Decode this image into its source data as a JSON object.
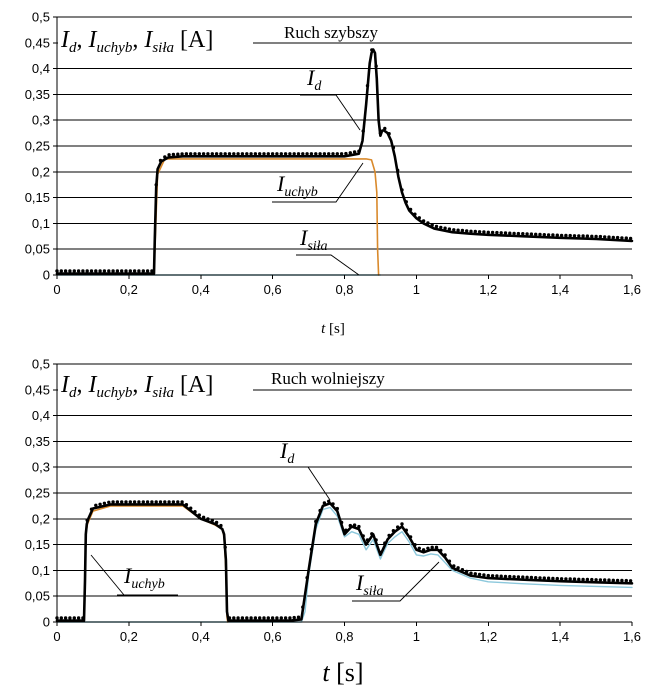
{
  "colors": {
    "id_series": "#000000",
    "uchyb_series": "#d9892b",
    "sila_series": "#8cc8dc"
  },
  "chart_data": [
    {
      "type": "line",
      "title": "Ruch szybszy",
      "xlabel_var": "t",
      "xlabel_unit": "[s]",
      "ylabel_unit": "[A]",
      "label_id": "d",
      "label_uchyb": "uchyb",
      "label_sila": "siła",
      "xlim": [
        0,
        1.6
      ],
      "ylim": [
        0,
        0.5
      ],
      "xticks": [
        "0",
        "0,2",
        "0,4",
        "0,6",
        "0,8",
        "1",
        "1,2",
        "1,4",
        "1,6"
      ],
      "yticks": [
        "0",
        "0,05",
        "0,1",
        "0,15",
        "0,2",
        "0,25",
        "0,3",
        "0,35",
        "0,4",
        "0,45",
        "0,5"
      ],
      "grid": true,
      "series": [
        {
          "key": "I_d",
          "x": [
            0,
            0.27,
            0.272,
            0.276,
            0.28,
            0.29,
            0.31,
            0.35,
            0.4,
            0.5,
            0.6,
            0.7,
            0.8,
            0.84,
            0.85,
            0.86,
            0.87,
            0.875,
            0.88,
            0.885,
            0.89,
            0.895,
            0.9,
            0.905,
            0.91,
            0.92,
            0.93,
            0.94,
            0.95,
            0.96,
            0.97,
            0.98,
            1.0,
            1.02,
            1.05,
            1.1,
            1.15,
            1.2,
            1.3,
            1.4,
            1.5,
            1.6
          ],
          "y": [
            0.003,
            0.003,
            0.07,
            0.17,
            0.205,
            0.22,
            0.228,
            0.23,
            0.23,
            0.23,
            0.23,
            0.23,
            0.23,
            0.235,
            0.26,
            0.33,
            0.41,
            0.43,
            0.437,
            0.43,
            0.38,
            0.3,
            0.27,
            0.28,
            0.28,
            0.275,
            0.26,
            0.23,
            0.19,
            0.16,
            0.14,
            0.125,
            0.11,
            0.1,
            0.09,
            0.083,
            0.08,
            0.078,
            0.075,
            0.072,
            0.07,
            0.066
          ]
        },
        {
          "key": "I_uchyb",
          "x": [
            0,
            0.27,
            0.28,
            0.3,
            0.4,
            0.5,
            0.6,
            0.7,
            0.8,
            0.86,
            0.875,
            0.885,
            0.89,
            0.892,
            0.895
          ],
          "y": [
            0.003,
            0.003,
            0.195,
            0.225,
            0.225,
            0.225,
            0.225,
            0.225,
            0.225,
            0.225,
            0.223,
            0.2,
            0.16,
            0.05,
            0
          ],
          "visible_x_max": 0.895
        },
        {
          "key": "I_sila",
          "x": [
            0,
            0.9
          ],
          "y": [
            0,
            0
          ],
          "visible_x_max": 0.9
        }
      ]
    },
    {
      "type": "line",
      "title": "Ruch wolniejszy",
      "xlabel_var": "t",
      "xlabel_unit": "[s]",
      "ylabel_unit": "[A]",
      "label_id": "d",
      "label_uchyb": "uchyb",
      "label_sila": "siła",
      "xlim": [
        0,
        1.6
      ],
      "ylim": [
        0,
        0.5
      ],
      "xticks": [
        "0",
        "0,2",
        "0,4",
        "0,6",
        "0,8",
        "1",
        "1,2",
        "1,4",
        "1,6"
      ],
      "yticks": [
        "0",
        "0,05",
        "0,1",
        "0,15",
        "0,2",
        "0,25",
        "0,3",
        "0,35",
        "0,4",
        "0,45",
        "0,5"
      ],
      "grid": true,
      "series": [
        {
          "key": "I_d",
          "x": [
            0,
            0.075,
            0.078,
            0.08,
            0.083,
            0.087,
            0.1,
            0.15,
            0.2,
            0.25,
            0.3,
            0.35,
            0.4,
            0.44,
            0.46,
            0.465,
            0.47,
            0.473,
            0.477,
            0.48,
            0.5,
            0.55,
            0.6,
            0.65,
            0.68,
            0.7,
            0.72,
            0.74,
            0.76,
            0.78,
            0.8,
            0.82,
            0.84,
            0.86,
            0.88,
            0.9,
            0.92,
            0.94,
            0.96,
            0.98,
            1.0,
            1.02,
            1.04,
            1.06,
            1.08,
            1.1,
            1.15,
            1.2,
            1.3,
            1.4,
            1.5,
            1.6
          ],
          "y": [
            0.003,
            0.003,
            0.08,
            0.17,
            0.19,
            0.2,
            0.22,
            0.228,
            0.228,
            0.228,
            0.228,
            0.228,
            0.2,
            0.19,
            0.18,
            0.17,
            0.12,
            0.02,
            0.003,
            0.003,
            0.003,
            0.003,
            0.003,
            0.003,
            0.005,
            0.1,
            0.19,
            0.225,
            0.23,
            0.215,
            0.17,
            0.185,
            0.18,
            0.15,
            0.17,
            0.13,
            0.16,
            0.175,
            0.185,
            0.165,
            0.14,
            0.135,
            0.14,
            0.14,
            0.125,
            0.105,
            0.09,
            0.085,
            0.082,
            0.079,
            0.077,
            0.075
          ]
        },
        {
          "key": "I_uchyb",
          "x": [
            0,
            0.075,
            0.08,
            0.085,
            0.1,
            0.15,
            0.2,
            0.25,
            0.3,
            0.35,
            0.4,
            0.44,
            0.46,
            0.465,
            0.47,
            0.473,
            0.475
          ],
          "y": [
            0.003,
            0.003,
            0.17,
            0.19,
            0.215,
            0.225,
            0.225,
            0.225,
            0.225,
            0.225,
            0.2,
            0.188,
            0.18,
            0.165,
            0.1,
            0.01,
            0
          ],
          "visible_x_max": 0.475
        },
        {
          "key": "I_sila",
          "x": [
            0,
            0.68,
            0.69,
            0.7,
            0.72,
            0.74,
            0.76,
            0.78,
            0.8,
            0.82,
            0.84,
            0.86,
            0.88,
            0.9,
            0.92,
            0.94,
            0.96,
            0.98,
            1.0,
            1.02,
            1.04,
            1.06,
            1.08,
            1.1,
            1.15,
            1.2,
            1.3,
            1.4,
            1.5,
            1.6
          ],
          "y": [
            0,
            0,
            0.02,
            0.09,
            0.18,
            0.218,
            0.222,
            0.205,
            0.165,
            0.175,
            0.17,
            0.14,
            0.16,
            0.122,
            0.152,
            0.165,
            0.175,
            0.155,
            0.13,
            0.128,
            0.132,
            0.13,
            0.115,
            0.1,
            0.085,
            0.078,
            0.074,
            0.071,
            0.069,
            0.067
          ]
        }
      ]
    }
  ]
}
